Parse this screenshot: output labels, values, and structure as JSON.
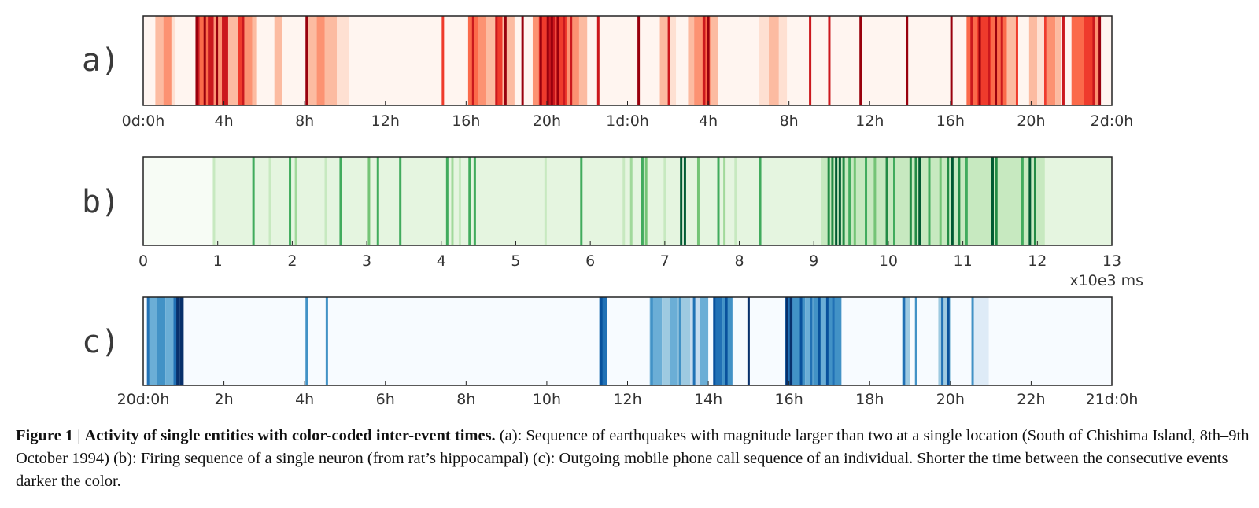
{
  "colors": {
    "reds": [
      "#fff5f0",
      "#fee0d2",
      "#fcbba1",
      "#fc9272",
      "#fb6a4a",
      "#ef3b2c",
      "#cb181d",
      "#99000d"
    ],
    "greens": [
      "#f7fcf5",
      "#e5f5e0",
      "#c7e9c0",
      "#a1d99b",
      "#74c476",
      "#41ab5d",
      "#238b45",
      "#005a32"
    ],
    "blues": [
      "#f7fbff",
      "#deebf7",
      "#c6dbef",
      "#9ecae1",
      "#6baed6",
      "#4292c6",
      "#2171b5",
      "#08519c",
      "#08306b"
    ]
  },
  "chart_data": [
    {
      "type": "heatmap",
      "panel_label": "a)",
      "x_unit": "hours",
      "xlim": [
        0,
        48
      ],
      "tick_values": [
        0,
        4,
        8,
        12,
        16,
        20,
        24,
        28,
        32,
        36,
        40,
        44,
        48
      ],
      "tick_labels": [
        "0d:0h",
        "4h",
        "8h",
        "12h",
        "16h",
        "20h",
        "1d:0h",
        "4h",
        "8h",
        "12h",
        "16h",
        "20h",
        "2d:0h"
      ],
      "xlabel": "",
      "colormap": "reds",
      "background_level": 0,
      "intervals": [
        {
          "x0": 0.6,
          "x1": 1.0,
          "level": 2
        },
        {
          "x0": 1.0,
          "x1": 1.4,
          "level": 3
        },
        {
          "x0": 1.4,
          "x1": 1.6,
          "level": 1
        },
        {
          "x0": 2.6,
          "x1": 2.8,
          "level": 6
        },
        {
          "x0": 2.8,
          "x1": 3.2,
          "level": 4
        },
        {
          "x0": 3.2,
          "x1": 3.5,
          "level": 6
        },
        {
          "x0": 3.5,
          "x1": 3.9,
          "level": 3
        },
        {
          "x0": 3.9,
          "x1": 4.1,
          "level": 6
        },
        {
          "x0": 4.1,
          "x1": 4.7,
          "level": 2
        },
        {
          "x0": 4.7,
          "x1": 4.9,
          "level": 5
        },
        {
          "x0": 4.9,
          "x1": 5.4,
          "level": 3
        },
        {
          "x0": 5.4,
          "x1": 5.6,
          "level": 2
        },
        {
          "x0": 6.5,
          "x1": 6.9,
          "level": 2
        },
        {
          "x0": 8.1,
          "x1": 8.6,
          "level": 2
        },
        {
          "x0": 8.6,
          "x1": 9.0,
          "level": 3
        },
        {
          "x0": 9.0,
          "x1": 9.6,
          "level": 2
        },
        {
          "x0": 9.6,
          "x1": 10.2,
          "level": 1
        },
        {
          "x0": 16.1,
          "x1": 16.6,
          "level": 4
        },
        {
          "x0": 16.6,
          "x1": 17.0,
          "level": 3
        },
        {
          "x0": 17.0,
          "x1": 17.5,
          "level": 2
        },
        {
          "x0": 17.5,
          "x1": 17.8,
          "level": 5
        },
        {
          "x0": 17.8,
          "x1": 18.4,
          "level": 2
        },
        {
          "x0": 19.3,
          "x1": 19.6,
          "level": 3
        },
        {
          "x0": 19.6,
          "x1": 20.0,
          "level": 5
        },
        {
          "x0": 20.0,
          "x1": 20.4,
          "level": 6
        },
        {
          "x0": 20.4,
          "x1": 21.0,
          "level": 5
        },
        {
          "x0": 21.0,
          "x1": 21.6,
          "level": 3
        },
        {
          "x0": 21.6,
          "x1": 22.0,
          "level": 2
        },
        {
          "x0": 25.6,
          "x1": 26.0,
          "level": 2
        },
        {
          "x0": 26.0,
          "x1": 26.4,
          "level": 1
        },
        {
          "x0": 27.0,
          "x1": 27.3,
          "level": 2
        },
        {
          "x0": 27.3,
          "x1": 27.7,
          "level": 3
        },
        {
          "x0": 27.7,
          "x1": 28.1,
          "level": 4
        },
        {
          "x0": 28.1,
          "x1": 28.5,
          "level": 2
        },
        {
          "x0": 30.5,
          "x1": 31.0,
          "level": 1
        },
        {
          "x0": 31.0,
          "x1": 31.5,
          "level": 2
        },
        {
          "x0": 31.5,
          "x1": 31.9,
          "level": 1
        },
        {
          "x0": 40.8,
          "x1": 41.3,
          "level": 4
        },
        {
          "x0": 41.3,
          "x1": 42.0,
          "level": 5
        },
        {
          "x0": 42.0,
          "x1": 42.8,
          "level": 4
        },
        {
          "x0": 42.8,
          "x1": 43.3,
          "level": 2
        },
        {
          "x0": 43.9,
          "x1": 44.3,
          "level": 2
        },
        {
          "x0": 44.3,
          "x1": 44.6,
          "level": 1
        },
        {
          "x0": 44.8,
          "x1": 45.2,
          "level": 3
        },
        {
          "x0": 45.2,
          "x1": 45.5,
          "level": 2
        },
        {
          "x0": 46.0,
          "x1": 46.6,
          "level": 4
        },
        {
          "x0": 46.6,
          "x1": 47.1,
          "level": 5
        },
        {
          "x0": 47.1,
          "x1": 47.4,
          "level": 3
        }
      ],
      "events": [
        {
          "x": 2.65,
          "level": 7
        },
        {
          "x": 3.05,
          "level": 7
        },
        {
          "x": 3.3,
          "level": 6
        },
        {
          "x": 3.65,
          "level": 7
        },
        {
          "x": 4.15,
          "level": 6
        },
        {
          "x": 4.95,
          "level": 6
        },
        {
          "x": 8.1,
          "level": 7
        },
        {
          "x": 14.85,
          "level": 5
        },
        {
          "x": 16.35,
          "level": 6
        },
        {
          "x": 17.5,
          "level": 6
        },
        {
          "x": 17.95,
          "level": 7
        },
        {
          "x": 18.8,
          "level": 7
        },
        {
          "x": 19.7,
          "level": 7
        },
        {
          "x": 20.05,
          "level": 7
        },
        {
          "x": 20.25,
          "level": 7
        },
        {
          "x": 20.55,
          "level": 7
        },
        {
          "x": 20.85,
          "level": 6
        },
        {
          "x": 21.2,
          "level": 6
        },
        {
          "x": 22.55,
          "level": 6
        },
        {
          "x": 24.55,
          "level": 7
        },
        {
          "x": 26.05,
          "level": 6
        },
        {
          "x": 27.8,
          "level": 6
        },
        {
          "x": 28.0,
          "level": 7
        },
        {
          "x": 33.05,
          "level": 6
        },
        {
          "x": 34.0,
          "level": 6
        },
        {
          "x": 35.55,
          "level": 7
        },
        {
          "x": 37.85,
          "level": 7
        },
        {
          "x": 40.05,
          "level": 7
        },
        {
          "x": 41.05,
          "level": 6
        },
        {
          "x": 41.45,
          "level": 7
        },
        {
          "x": 41.9,
          "level": 6
        },
        {
          "x": 42.25,
          "level": 7
        },
        {
          "x": 42.55,
          "level": 6
        },
        {
          "x": 43.3,
          "level": 5
        },
        {
          "x": 44.7,
          "level": 5
        },
        {
          "x": 45.6,
          "level": 6
        },
        {
          "x": 47.1,
          "level": 6
        },
        {
          "x": 47.4,
          "level": 7
        }
      ]
    },
    {
      "type": "heatmap",
      "panel_label": "b)",
      "x_unit": "x10e3 ms",
      "xlim": [
        0,
        13
      ],
      "tick_values": [
        0,
        1,
        2,
        3,
        4,
        5,
        6,
        7,
        8,
        9,
        10,
        11,
        12,
        13
      ],
      "tick_labels": [
        "0",
        "1",
        "2",
        "3",
        "4",
        "5",
        "6",
        "7",
        "8",
        "9",
        "10",
        "11",
        "12",
        "13"
      ],
      "xlabel": "x10e3 ms",
      "colormap": "greens",
      "background_level": 1,
      "intervals": [
        {
          "x0": 0.0,
          "x1": 0.95,
          "level": 0
        },
        {
          "x0": 9.1,
          "x1": 12.1,
          "level": 2
        }
      ],
      "events": [
        {
          "x": 0.95,
          "level": 2
        },
        {
          "x": 1.48,
          "level": 5
        },
        {
          "x": 1.7,
          "level": 2
        },
        {
          "x": 1.97,
          "level": 5
        },
        {
          "x": 2.05,
          "level": 3
        },
        {
          "x": 2.45,
          "level": 2
        },
        {
          "x": 2.65,
          "level": 5
        },
        {
          "x": 3.03,
          "level": 4
        },
        {
          "x": 3.15,
          "level": 5
        },
        {
          "x": 3.45,
          "level": 5
        },
        {
          "x": 4.08,
          "level": 5
        },
        {
          "x": 4.15,
          "level": 3
        },
        {
          "x": 4.25,
          "level": 2
        },
        {
          "x": 4.38,
          "level": 5
        },
        {
          "x": 4.45,
          "level": 5
        },
        {
          "x": 5.4,
          "level": 2
        },
        {
          "x": 5.88,
          "level": 5
        },
        {
          "x": 6.45,
          "level": 2
        },
        {
          "x": 6.55,
          "level": 3
        },
        {
          "x": 6.7,
          "level": 5
        },
        {
          "x": 6.75,
          "level": 4
        },
        {
          "x": 7.0,
          "level": 2
        },
        {
          "x": 7.22,
          "level": 7
        },
        {
          "x": 7.27,
          "level": 7
        },
        {
          "x": 7.45,
          "level": 4
        },
        {
          "x": 7.72,
          "level": 5
        },
        {
          "x": 7.8,
          "level": 3
        },
        {
          "x": 7.95,
          "level": 2
        },
        {
          "x": 8.28,
          "level": 5
        },
        {
          "x": 9.2,
          "level": 6
        },
        {
          "x": 9.25,
          "level": 6
        },
        {
          "x": 9.3,
          "level": 7
        },
        {
          "x": 9.35,
          "level": 7
        },
        {
          "x": 9.4,
          "level": 6
        },
        {
          "x": 9.48,
          "level": 5
        },
        {
          "x": 9.55,
          "level": 4
        },
        {
          "x": 9.7,
          "level": 5
        },
        {
          "x": 9.82,
          "level": 4
        },
        {
          "x": 9.98,
          "level": 6
        },
        {
          "x": 10.08,
          "level": 5
        },
        {
          "x": 10.3,
          "level": 6
        },
        {
          "x": 10.37,
          "level": 6
        },
        {
          "x": 10.42,
          "level": 7
        },
        {
          "x": 10.55,
          "level": 5
        },
        {
          "x": 10.7,
          "level": 4
        },
        {
          "x": 10.8,
          "level": 6
        },
        {
          "x": 10.86,
          "level": 7
        },
        {
          "x": 10.95,
          "level": 6
        },
        {
          "x": 11.05,
          "level": 5
        },
        {
          "x": 11.4,
          "level": 7
        },
        {
          "x": 11.45,
          "level": 6
        },
        {
          "x": 11.8,
          "level": 5
        },
        {
          "x": 11.9,
          "level": 7
        },
        {
          "x": 11.97,
          "level": 6
        }
      ]
    },
    {
      "type": "heatmap",
      "panel_label": "c)",
      "x_unit": "hours",
      "xlim": [
        0,
        24
      ],
      "tick_values": [
        0,
        2,
        4,
        6,
        8,
        10,
        12,
        14,
        16,
        18,
        20,
        22,
        24
      ],
      "tick_labels": [
        "20d:0h",
        "2h",
        "4h",
        "6h",
        "8h",
        "10h",
        "12h",
        "14h",
        "16h",
        "18h",
        "20h",
        "22h",
        "21d:0h"
      ],
      "xlabel": "",
      "colormap": "blues",
      "background_level": 0,
      "intervals": [
        {
          "x0": 0.1,
          "x1": 0.35,
          "level": 4
        },
        {
          "x0": 0.35,
          "x1": 0.55,
          "level": 5
        },
        {
          "x0": 0.55,
          "x1": 0.75,
          "level": 4
        },
        {
          "x0": 0.75,
          "x1": 0.9,
          "level": 6
        },
        {
          "x0": 0.9,
          "x1": 1.0,
          "level": 8
        },
        {
          "x0": 11.3,
          "x1": 11.5,
          "level": 6
        },
        {
          "x0": 12.55,
          "x1": 12.85,
          "level": 4
        },
        {
          "x0": 12.85,
          "x1": 13.05,
          "level": 3
        },
        {
          "x0": 13.05,
          "x1": 13.25,
          "level": 4
        },
        {
          "x0": 13.25,
          "x1": 13.55,
          "level": 3
        },
        {
          "x0": 13.55,
          "x1": 13.8,
          "level": 2
        },
        {
          "x0": 13.8,
          "x1": 14.0,
          "level": 4
        },
        {
          "x0": 14.15,
          "x1": 14.35,
          "level": 6
        },
        {
          "x0": 14.35,
          "x1": 14.6,
          "level": 5
        },
        {
          "x0": 15.9,
          "x1": 16.1,
          "level": 6
        },
        {
          "x0": 16.1,
          "x1": 16.4,
          "level": 5
        },
        {
          "x0": 16.4,
          "x1": 16.6,
          "level": 4
        },
        {
          "x0": 16.6,
          "x1": 16.8,
          "level": 5
        },
        {
          "x0": 16.8,
          "x1": 17.0,
          "level": 4
        },
        {
          "x0": 17.0,
          "x1": 17.3,
          "level": 5
        },
        {
          "x0": 18.8,
          "x1": 19.0,
          "level": 3
        },
        {
          "x0": 19.7,
          "x1": 20.0,
          "level": 3
        },
        {
          "x0": 20.55,
          "x1": 20.95,
          "level": 1
        }
      ],
      "events": [
        {
          "x": 0.12,
          "level": 6
        },
        {
          "x": 0.85,
          "level": 8
        },
        {
          "x": 0.97,
          "level": 8
        },
        {
          "x": 4.05,
          "level": 5
        },
        {
          "x": 4.55,
          "level": 5
        },
        {
          "x": 11.35,
          "level": 7
        },
        {
          "x": 11.45,
          "level": 6
        },
        {
          "x": 12.6,
          "level": 5
        },
        {
          "x": 13.3,
          "level": 5
        },
        {
          "x": 13.65,
          "level": 6
        },
        {
          "x": 14.15,
          "level": 7
        },
        {
          "x": 14.45,
          "level": 7
        },
        {
          "x": 15.0,
          "level": 8
        },
        {
          "x": 15.95,
          "level": 8
        },
        {
          "x": 16.05,
          "level": 8
        },
        {
          "x": 16.3,
          "level": 7
        },
        {
          "x": 16.55,
          "level": 6
        },
        {
          "x": 16.75,
          "level": 7
        },
        {
          "x": 16.95,
          "level": 7
        },
        {
          "x": 17.1,
          "level": 6
        },
        {
          "x": 18.85,
          "level": 6
        },
        {
          "x": 19.15,
          "level": 5
        },
        {
          "x": 19.8,
          "level": 6
        },
        {
          "x": 19.95,
          "level": 7
        },
        {
          "x": 20.55,
          "level": 5
        }
      ]
    }
  ],
  "caption": {
    "figure_number": "Figure 1",
    "separator": "|",
    "title": "Activity of single entities with color-coded inter-event times.",
    "text": "(a): Sequence of earthquakes with magnitude larger than two at a single location (South of Chishima Island, 8th–9th October 1994) (b): Firing sequence of a single neuron (from rat’s hippocampal) (c): Outgoing mobile phone call sequence of an individual. Shorter the time between the consecutive events darker the color."
  }
}
